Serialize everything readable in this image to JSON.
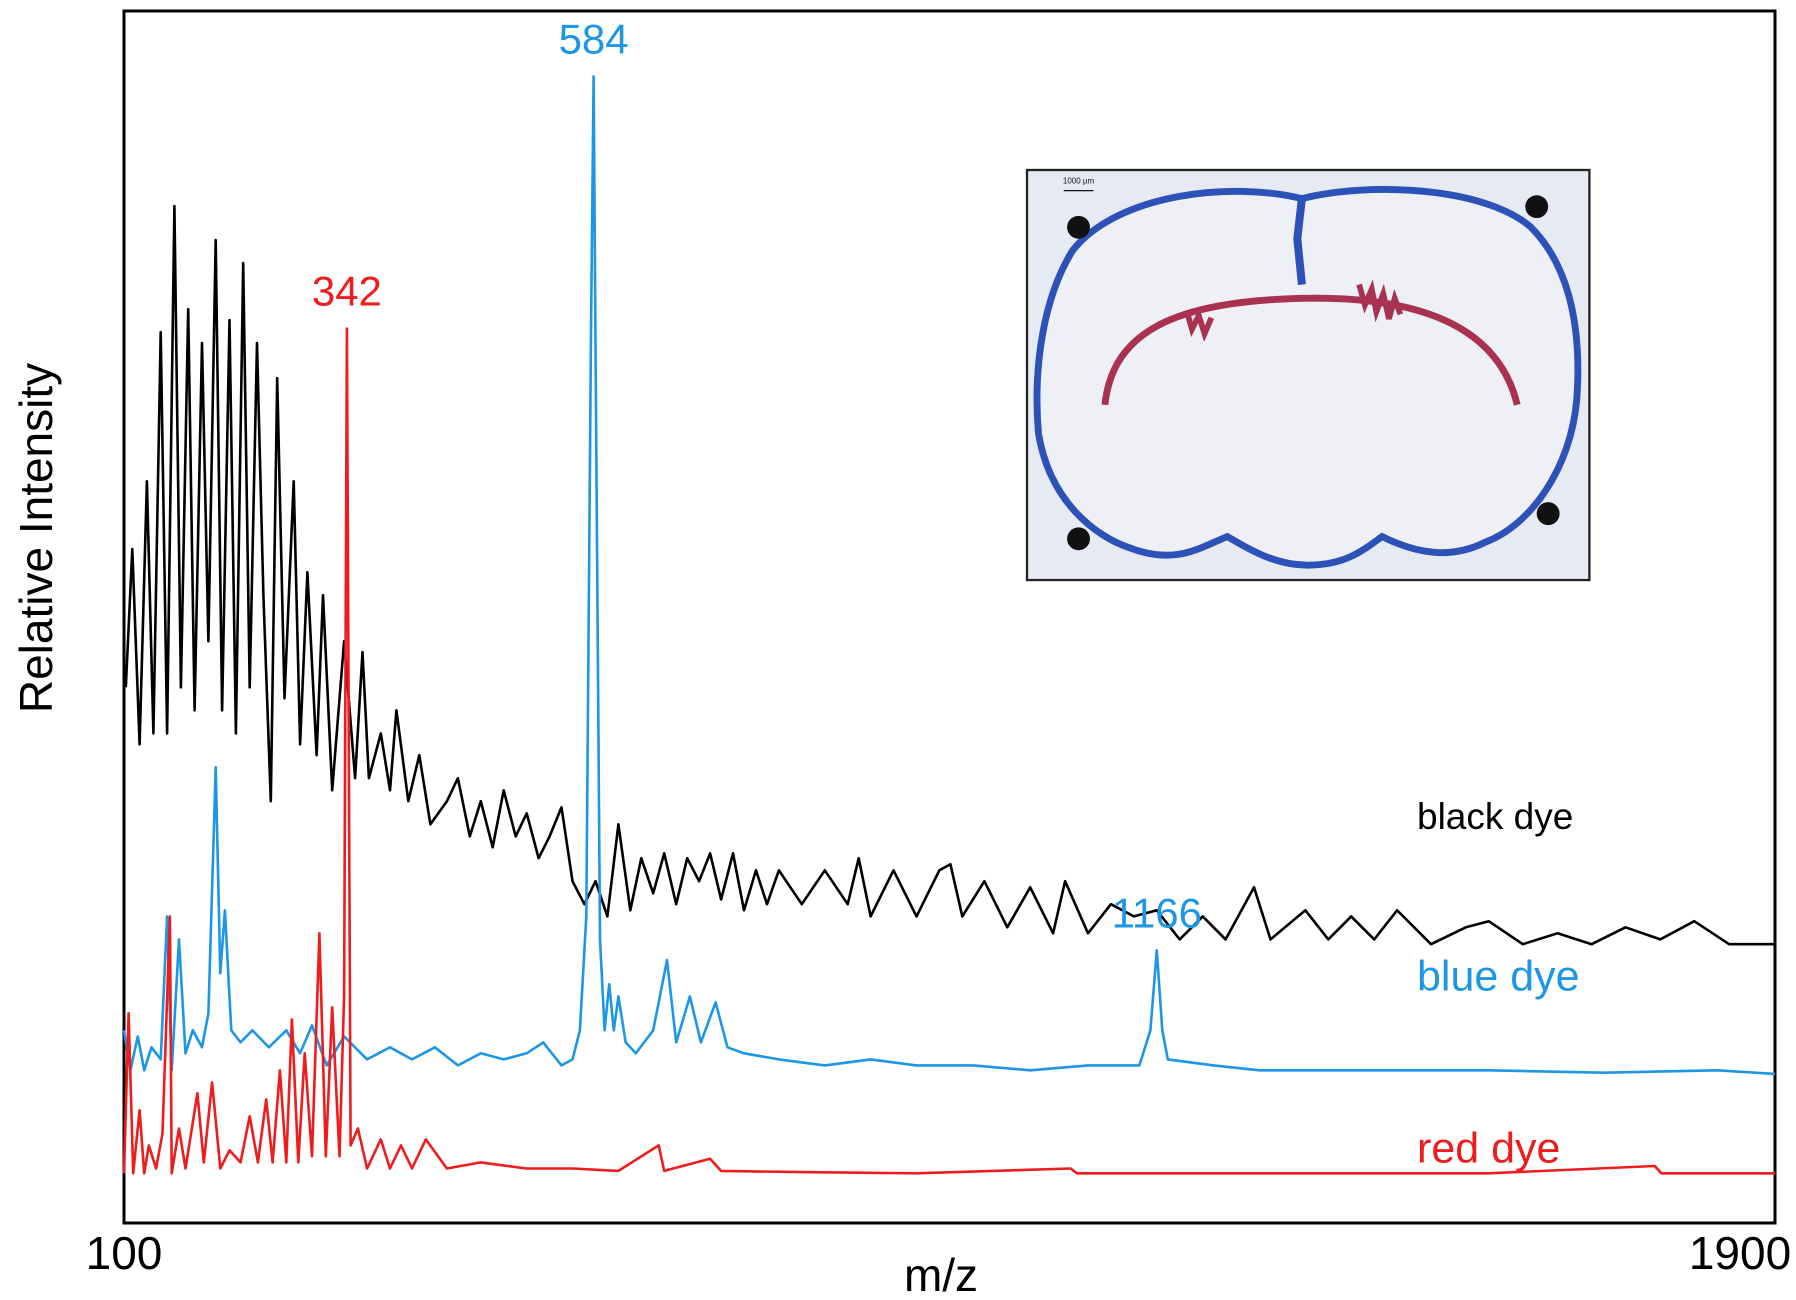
{
  "chart_data": {
    "type": "line",
    "x_label": "m/z",
    "y_label": "Relative Intensity",
    "xlim": [
      100,
      1900
    ],
    "xticks": [
      100,
      1900
    ],
    "ylim": [
      0,
      100
    ],
    "grid": false,
    "series": [
      {
        "name": "black dye",
        "color": "#000000",
        "x": [
          102,
          109,
          117,
          125,
          132,
          140,
          147,
          155,
          162,
          170,
          177,
          185,
          192,
          200,
          207,
          215,
          222,
          230,
          237,
          245,
          252,
          260,
          267,
          275,
          285,
          292,
          300,
          310,
          317,
          327,
          340,
          352,
          360,
          367,
          380,
          390,
          397,
          410,
          422,
          434,
          452,
          464,
          477,
          489,
          502,
          514,
          527,
          539,
          552,
          564,
          577,
          589,
          602,
          614,
          627,
          639,
          652,
          664,
          677,
          689,
          702,
          714,
          727,
          739,
          751,
          764,
          776,
          789,
          801,
          814,
          839,
          864,
          889,
          901,
          914,
          939,
          964,
          989,
          1001,
          1014,
          1038,
          1063,
          1088,
          1113,
          1126,
          1151,
          1176,
          1201,
          1226,
          1251,
          1276,
          1301,
          1332,
          1350,
          1388,
          1413,
          1438,
          1463,
          1488,
          1525,
          1563,
          1588,
          1625,
          1663,
          1700,
          1737,
          1775,
          1812,
          1850,
          1900
        ],
        "values": [
          44.2,
          55.6,
          39.5,
          61.2,
          40.4,
          73.5,
          40.4,
          83.9,
          44.2,
          75.4,
          42.3,
          72.6,
          48.0,
          81.1,
          42.3,
          74.5,
          40.4,
          79.2,
          44.2,
          72.6,
          51.8,
          34.8,
          69.7,
          43.3,
          61.2,
          39.5,
          53.7,
          38.6,
          51.8,
          35.7,
          48.0,
          36.7,
          47.1,
          36.7,
          40.4,
          35.7,
          42.3,
          34.8,
          38.6,
          32.9,
          34.8,
          36.7,
          31.9,
          34.8,
          31.0,
          35.7,
          31.9,
          33.8,
          30.1,
          31.9,
          34.3,
          28.2,
          26.3,
          28.2,
          25.3,
          32.9,
          25.8,
          30.1,
          27.2,
          30.5,
          26.3,
          30.1,
          28.2,
          30.5,
          26.7,
          30.5,
          25.8,
          29.1,
          26.3,
          29.1,
          26.3,
          29.1,
          26.3,
          30.1,
          25.3,
          29.1,
          25.3,
          29.1,
          29.6,
          25.3,
          28.2,
          24.4,
          27.7,
          23.9,
          28.2,
          23.9,
          26.3,
          25.3,
          25.8,
          23.4,
          25.3,
          23.4,
          27.7,
          23.4,
          25.8,
          23.4,
          25.3,
          23.4,
          25.8,
          23.0,
          24.4,
          24.9,
          23.0,
          23.9,
          23.0,
          24.4,
          23.4,
          24.9,
          23.0,
          23.0
        ]
      },
      {
        "name": "blue dye",
        "color": "#1e96e6",
        "annotations": [
          "584",
          "1166"
        ],
        "x": [
          100,
          107,
          115,
          122,
          130,
          140,
          147,
          152,
          160,
          167,
          175,
          185,
          192,
          200,
          205,
          210,
          217,
          227,
          240,
          258,
          277,
          292,
          305,
          321,
          340,
          365,
          390,
          414,
          439,
          464,
          489,
          514,
          539,
          557,
          577,
          589,
          597,
          604,
          609,
          612,
          614,
          619,
          624,
          629,
          634,
          639,
          647,
          658,
          677,
          692,
          702,
          717,
          729,
          745,
          758,
          776,
          814,
          864,
          914,
          964,
          1026,
          1088,
          1151,
          1207,
          1219,
          1226,
          1232,
          1238,
          1288,
          1338,
          1463,
          1588,
          1712,
          1837,
          1900
        ],
        "values": [
          15.9,
          12.6,
          15.4,
          12.6,
          14.5,
          13.5,
          25.3,
          12.6,
          23.4,
          14.0,
          15.9,
          14.5,
          17.3,
          37.6,
          20.6,
          25.8,
          15.9,
          14.9,
          15.9,
          14.5,
          15.9,
          14.0,
          16.3,
          13.0,
          15.4,
          13.5,
          14.5,
          13.5,
          14.5,
          13.0,
          14.0,
          13.5,
          14.0,
          14.9,
          13.0,
          13.5,
          15.9,
          25.3,
          72.6,
          94.6,
          72.6,
          23.4,
          15.9,
          19.7,
          15.9,
          18.7,
          14.9,
          14.0,
          15.9,
          21.7,
          14.9,
          18.7,
          14.9,
          18.2,
          14.5,
          14.0,
          13.5,
          13.0,
          13.5,
          13.0,
          13.0,
          12.6,
          13.0,
          13.0,
          15.9,
          22.5,
          15.9,
          13.5,
          13.0,
          12.6,
          12.6,
          12.6,
          12.4,
          12.6,
          12.3
        ]
      },
      {
        "name": "red dye",
        "color": "#ee1c1c",
        "annotations": [
          "342"
        ],
        "x": [
          100,
          105,
          110,
          117,
          122,
          127,
          135,
          142,
          150,
          152,
          160,
          167,
          180,
          187,
          196,
          205,
          215,
          227,
          237,
          246,
          255,
          262,
          270,
          277,
          283,
          290,
          297,
          305,
          313,
          320,
          327,
          335,
          340,
          343,
          347,
          355,
          365,
          380,
          390,
          402,
          414,
          429,
          452,
          489,
          539,
          589,
          639,
          683,
          689,
          739,
          751,
          839,
          964,
          1132,
          1139,
          1338,
          1588,
          1769,
          1776,
          1900
        ],
        "values": [
          4.1,
          17.3,
          4.1,
          9.3,
          4.1,
          6.4,
          4.5,
          7.4,
          25.3,
          4.1,
          7.8,
          4.5,
          10.7,
          5.0,
          11.6,
          4.5,
          6.0,
          5.0,
          8.8,
          5.0,
          10.2,
          5.0,
          12.6,
          5.0,
          16.8,
          5.0,
          14.0,
          5.5,
          23.9,
          5.5,
          17.8,
          5.5,
          18.7,
          73.8,
          6.4,
          7.8,
          4.5,
          6.9,
          4.5,
          6.4,
          4.5,
          6.9,
          4.5,
          5.0,
          4.5,
          4.5,
          4.3,
          6.4,
          4.3,
          5.3,
          4.3,
          4.2,
          4.1,
          4.5,
          4.1,
          4.1,
          4.1,
          4.7,
          4.1,
          4.1
        ]
      }
    ]
  },
  "inset": {
    "scale_label": "1000 µm"
  }
}
